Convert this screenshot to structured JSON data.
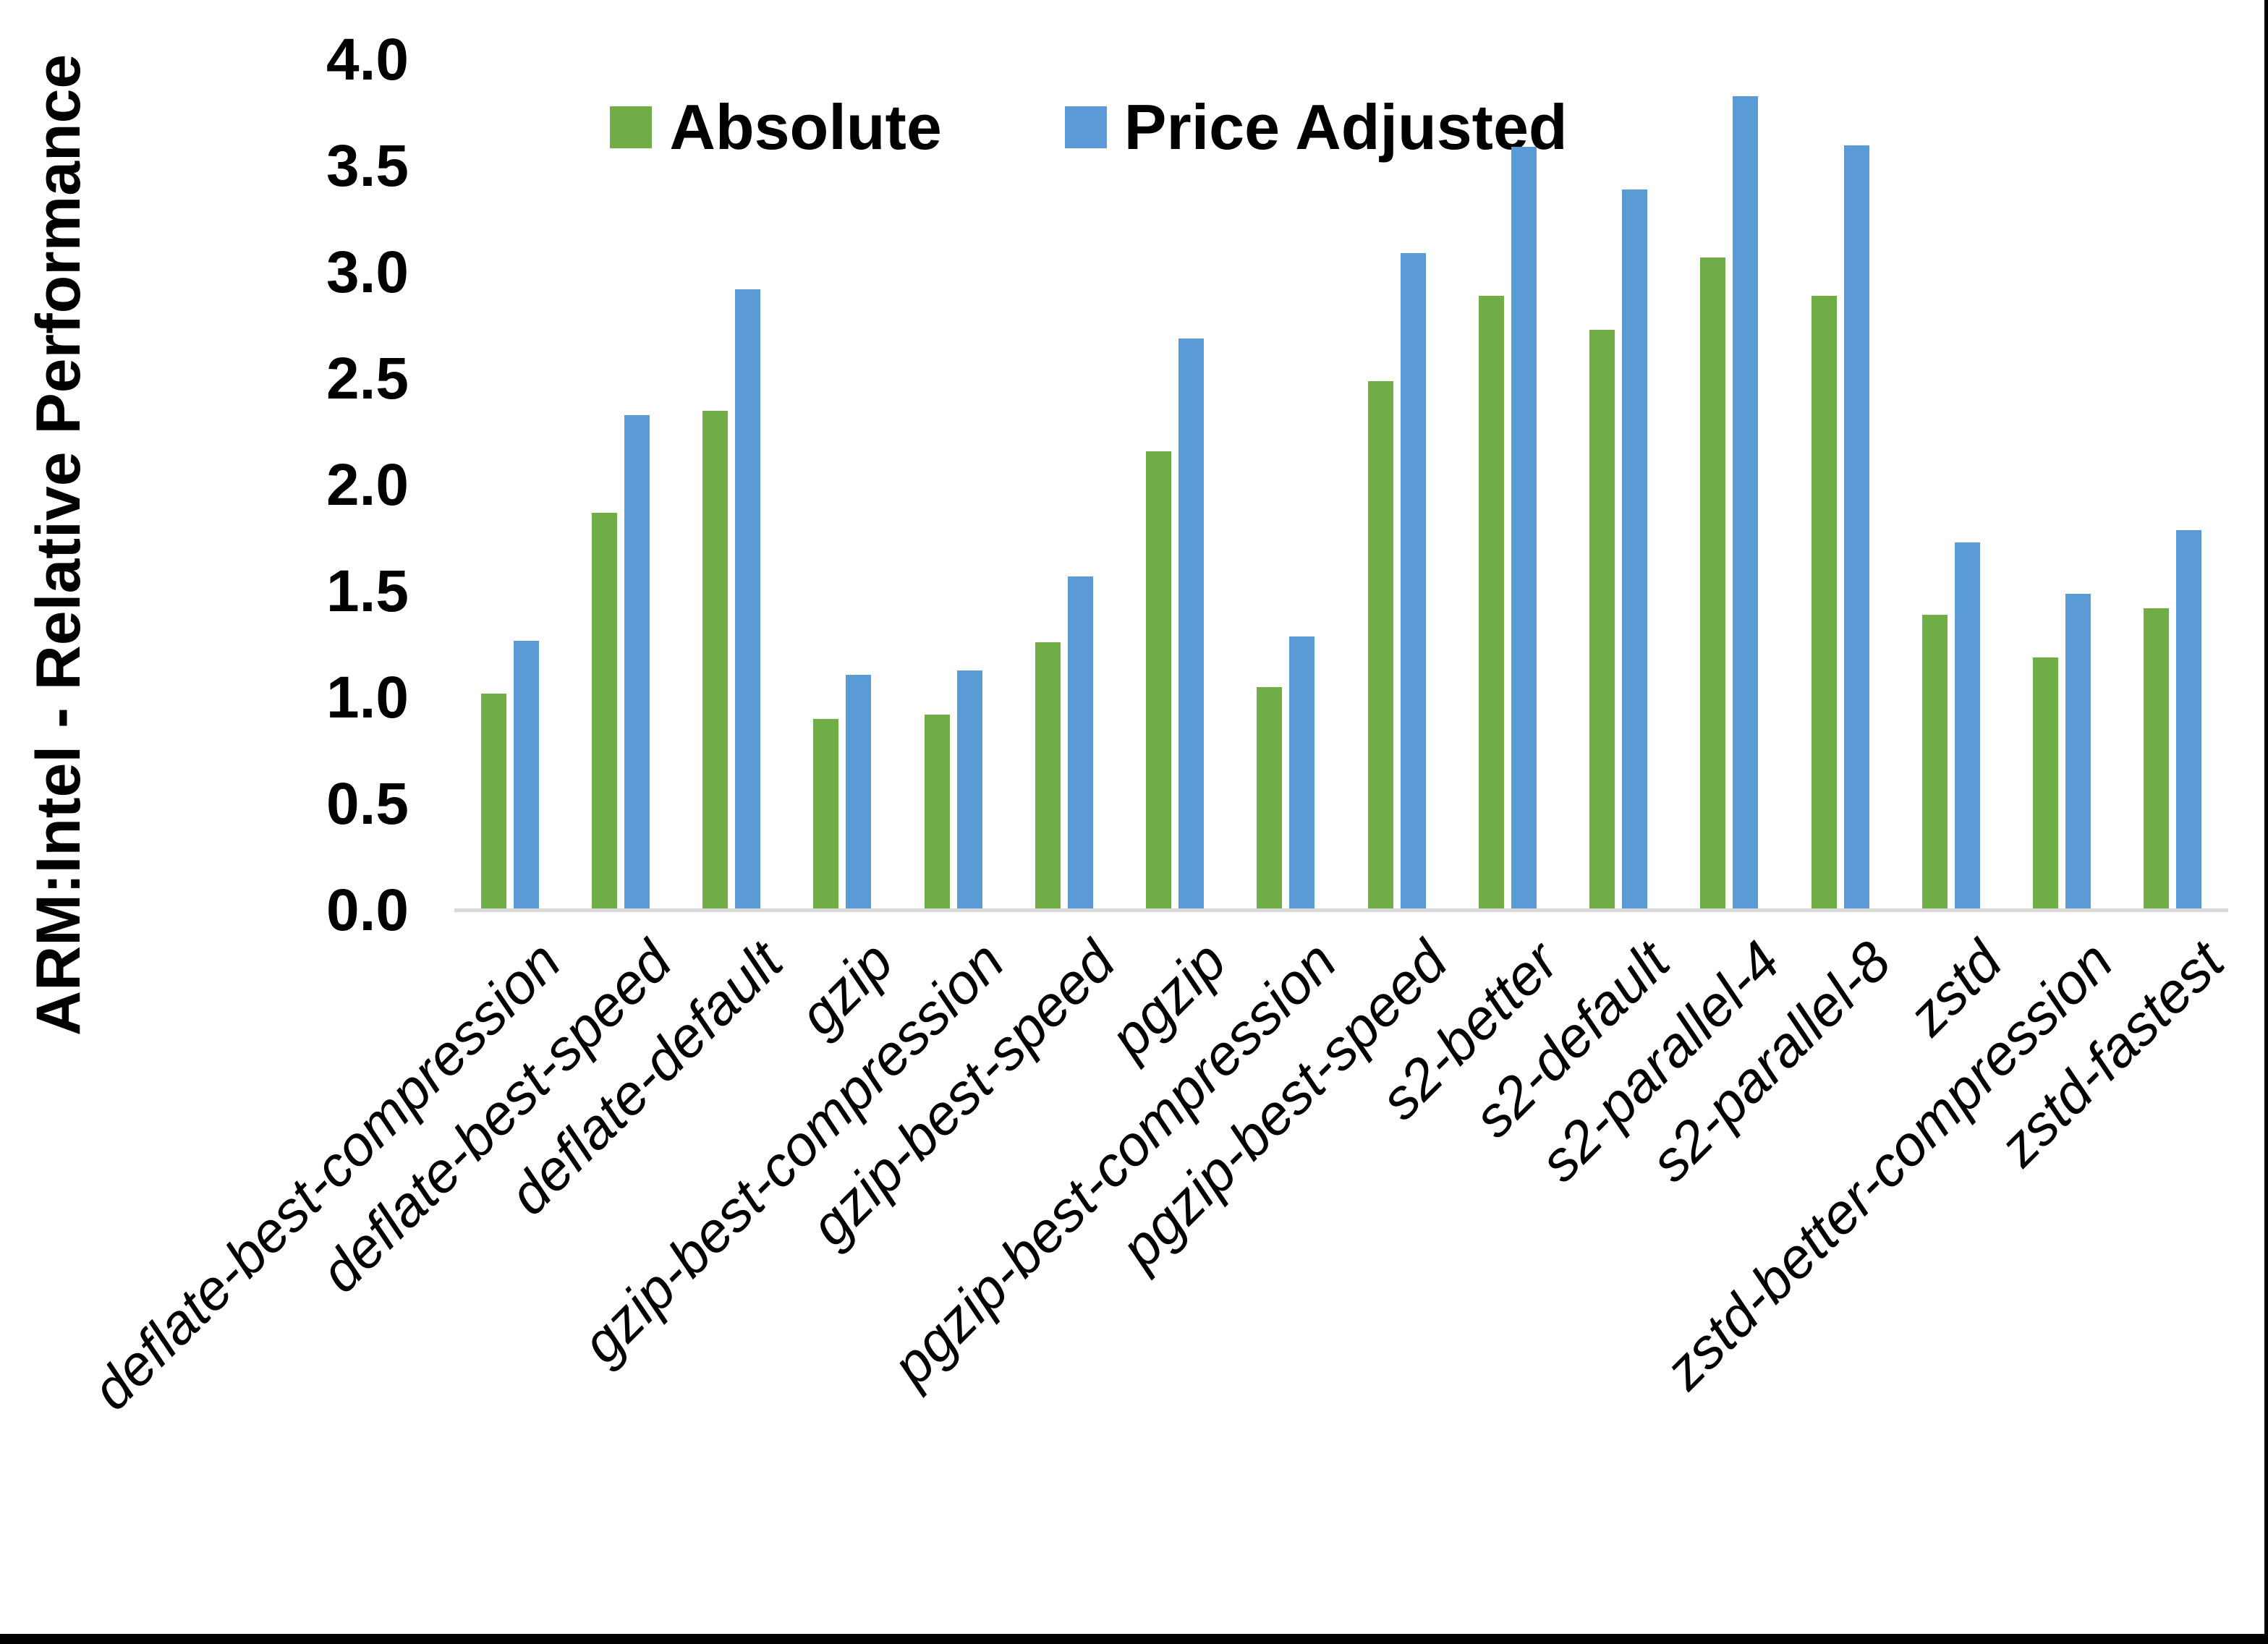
{
  "chart_data": {
    "type": "bar",
    "title": "",
    "ylabel": "ARM:Intel - Relative Performance",
    "xlabel": "",
    "ylim": [
      0.0,
      4.0
    ],
    "ytick_step": 0.5,
    "yticks": [
      "4.0",
      "3.5",
      "3.0",
      "2.5",
      "2.0",
      "1.5",
      "1.0",
      "0.5",
      "0.0"
    ],
    "grid": "off",
    "legend_position": "top-center",
    "axis_line_color": "#d9d9d9",
    "text_color": "#000000",
    "categories": [
      "deflate-best-compression",
      "deflate-best-speed",
      "deflate-default",
      "gzip",
      "gzip-best-compression",
      "gzip-best-speed",
      "pgzip",
      "pgzip-best-compression",
      "pgzip-best-speed",
      "s2-better",
      "s2-default",
      "s2-parallel-4",
      "s2-parallel-8",
      "zstd",
      "zstd-better-compression",
      "zstd-fastest"
    ],
    "series": [
      {
        "name": "Absolute",
        "color": "#70AD47",
        "values": [
          1.01,
          1.86,
          2.34,
          0.89,
          0.91,
          1.25,
          2.15,
          1.04,
          2.48,
          2.88,
          2.72,
          3.06,
          2.88,
          1.38,
          1.18,
          1.41
        ]
      },
      {
        "name": "Price Adjusted",
        "color": "#5B9BD5",
        "values": [
          1.26,
          2.32,
          2.91,
          1.1,
          1.12,
          1.56,
          2.68,
          1.28,
          3.08,
          3.58,
          3.38,
          3.82,
          3.59,
          1.72,
          1.48,
          1.78
        ]
      }
    ]
  },
  "frame": {
    "right_border_color": "#000000",
    "bottom_border_color": "#000000"
  }
}
